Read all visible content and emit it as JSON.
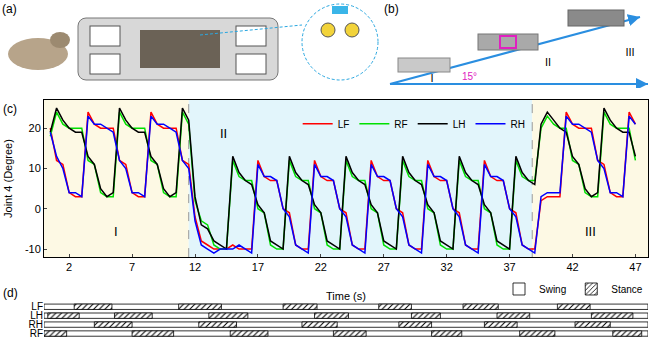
{
  "panels": {
    "a": "(a)",
    "b": "(b)",
    "b_stages": [
      "I",
      "II",
      "III"
    ],
    "b_slope": "15°"
  },
  "chart_data": [
    {
      "type": "line",
      "panel_label": "(c)",
      "x_label": "Time (s)",
      "y_label": "Joint 4 (Degree)",
      "x": [
        0.5,
        1,
        1.5,
        2,
        2.5,
        3,
        3.5,
        4,
        4.5,
        5,
        5.5,
        6,
        6.5,
        7,
        7.5,
        8,
        8.5,
        9,
        9.5,
        10,
        10.5,
        11,
        11.5,
        12,
        12.5,
        13,
        13.5,
        14,
        14.5,
        15,
        15.5,
        16,
        16.5,
        17,
        17.5,
        18,
        18.5,
        19,
        19.5,
        20,
        20.5,
        21,
        21.5,
        22,
        22.5,
        23,
        23.5,
        24,
        24.5,
        25,
        25.5,
        26,
        26.5,
        27,
        27.5,
        28,
        28.5,
        29,
        29.5,
        30,
        30.5,
        31,
        31.5,
        32,
        32.5,
        33,
        33.5,
        34,
        34.5,
        35,
        35.5,
        36,
        36.5,
        37,
        37.5,
        38,
        38.5,
        39,
        39.5,
        40,
        40.5,
        41,
        41.5,
        42,
        42.5,
        43,
        43.5,
        44,
        44.5,
        45,
        45.5,
        46,
        46.5,
        47
      ],
      "series": [
        {
          "name": "LF",
          "color": "#ff0000",
          "values": [
            20,
            12,
            11,
            4,
            3,
            3,
            24,
            21,
            20,
            20,
            20,
            12,
            11,
            4,
            3,
            3,
            24,
            21,
            20,
            20,
            20,
            12,
            11,
            -2,
            -8,
            -9,
            -10,
            -10,
            -10,
            -9,
            -10,
            -10,
            -10,
            12,
            8,
            7,
            7,
            0,
            -1,
            -9,
            -10,
            -10,
            12,
            8,
            7,
            7,
            0,
            -1,
            -9,
            -10,
            -10,
            12,
            8,
            7,
            7,
            0,
            -1,
            -9,
            -10,
            -10,
            12,
            8,
            7,
            7,
            0,
            -1,
            -9,
            -10,
            -10,
            12,
            8,
            7,
            7,
            0,
            -1,
            -9,
            -10,
            -10,
            2,
            3,
            3,
            3,
            24,
            21,
            20,
            20,
            20,
            12,
            11,
            4,
            3,
            3,
            24,
            21
          ]
        },
        {
          "name": "RF",
          "color": "#00e000",
          "values": [
            18,
            24,
            21,
            20,
            20,
            20,
            12,
            11,
            4,
            3,
            3,
            24,
            21,
            20,
            20,
            20,
            12,
            11,
            4,
            3,
            3,
            24,
            21,
            2,
            -3,
            -4,
            -9,
            -10,
            -10,
            12,
            8,
            7,
            7,
            0,
            -1,
            -9,
            -10,
            -10,
            12,
            8,
            7,
            7,
            0,
            -1,
            -9,
            -10,
            -10,
            12,
            8,
            7,
            7,
            0,
            -1,
            -9,
            -10,
            -10,
            12,
            8,
            7,
            7,
            0,
            -1,
            -9,
            -10,
            -10,
            12,
            8,
            7,
            7,
            0,
            -1,
            -9,
            -10,
            -10,
            12,
            8,
            7,
            7,
            20,
            23,
            21,
            20,
            20,
            12,
            11,
            4,
            3,
            3,
            24,
            21,
            20,
            20,
            20,
            12
          ]
        },
        {
          "name": "LH",
          "color": "#000000",
          "values": [
            19,
            25,
            22,
            20,
            19,
            19,
            13,
            11,
            5,
            3,
            4,
            25,
            22,
            20,
            19,
            19,
            13,
            11,
            5,
            3,
            4,
            25,
            22,
            3,
            -4,
            -5,
            -8,
            -9,
            -10,
            13,
            9,
            7,
            6,
            1,
            -1,
            -8,
            -9,
            -10,
            13,
            9,
            7,
            6,
            1,
            -1,
            -8,
            -9,
            -10,
            13,
            9,
            7,
            6,
            1,
            -1,
            -8,
            -9,
            -10,
            13,
            9,
            7,
            6,
            1,
            -1,
            -8,
            -9,
            -10,
            13,
            9,
            7,
            6,
            1,
            -1,
            -8,
            -9,
            -10,
            13,
            9,
            7,
            6,
            21,
            24,
            22,
            20,
            19,
            13,
            11,
            5,
            3,
            4,
            25,
            22,
            20,
            19,
            19,
            13
          ]
        },
        {
          "name": "RH",
          "color": "#0000ff",
          "values": [
            19,
            13,
            10,
            4,
            4,
            3,
            23,
            21,
            21,
            20,
            19,
            12,
            10,
            4,
            4,
            3,
            23,
            21,
            21,
            20,
            19,
            12,
            10,
            -3,
            -9,
            -10,
            -11,
            -10,
            -10,
            -10,
            -9,
            -10,
            -11,
            11,
            8,
            8,
            7,
            0,
            -2,
            -9,
            -10,
            -11,
            11,
            8,
            8,
            7,
            0,
            -2,
            -9,
            -10,
            -11,
            11,
            8,
            8,
            7,
            0,
            -2,
            -9,
            -10,
            -11,
            11,
            8,
            8,
            7,
            0,
            -2,
            -9,
            -10,
            -11,
            11,
            8,
            8,
            7,
            0,
            -2,
            -9,
            -10,
            -11,
            3,
            4,
            4,
            4,
            23,
            21,
            21,
            20,
            19,
            12,
            10,
            4,
            4,
            3,
            23,
            21
          ]
        }
      ],
      "regions": [
        {
          "label": "I",
          "start": 0,
          "end": 11.5,
          "color": "#fdf9e4"
        },
        {
          "label": "II",
          "start": 11.5,
          "end": 38.8,
          "color": "#e2f5fb"
        },
        {
          "label": "III",
          "start": 38.8,
          "end": 48,
          "color": "#fdf9e4"
        }
      ],
      "xlim": [
        0,
        48
      ],
      "xticks": [
        2,
        7,
        12,
        17,
        22,
        27,
        32,
        37,
        42,
        47
      ],
      "ylim": [
        -12,
        27
      ],
      "yticks": [
        -10,
        0,
        10,
        20
      ],
      "grid": false,
      "legend": "top"
    },
    {
      "type": "timeline",
      "panel_label": "(d)",
      "categories": [
        "LF",
        "LH",
        "RH",
        "RF"
      ],
      "series": [
        {
          "name": "Swing",
          "color": "#ffffff"
        },
        {
          "name": "Stance",
          "color": "#000000",
          "marker": "hatch",
          "intervals": [
            [
              [
                2.4,
                5.4
              ],
              [
                10.7,
                14.1
              ],
              [
                19.0,
                21.7
              ],
              [
                26.6,
                29.2
              ],
              [
                33.3,
                36.1
              ],
              [
                40.8,
                43.4
              ]
            ],
            [
              [
                0.3,
                2.8
              ],
              [
                5.6,
                8.6
              ],
              [
                13.1,
                16.2
              ],
              [
                21.5,
                24.2
              ],
              [
                29.2,
                31.5
              ],
              [
                36.0,
                38.6
              ],
              [
                43.5,
                46.8
              ]
            ],
            [
              [
                4.0,
                7.0
              ],
              [
                12.3,
                15.3
              ],
              [
                20.5,
                23.3
              ],
              [
                28.2,
                30.8
              ],
              [
                35.0,
                37.6
              ],
              [
                42.2,
                45.0
              ]
            ],
            [
              [
                0.0,
                1.8
              ],
              [
                7.0,
                10.3
              ],
              [
                14.8,
                17.8
              ],
              [
                23.0,
                25.6
              ],
              [
                30.8,
                33.2
              ],
              [
                37.8,
                40.6
              ],
              [
                45.2,
                47.5
              ]
            ]
          ]
        }
      ],
      "xlim": [
        0,
        48
      ],
      "tick_labels": "y",
      "legend": "top right"
    }
  ]
}
